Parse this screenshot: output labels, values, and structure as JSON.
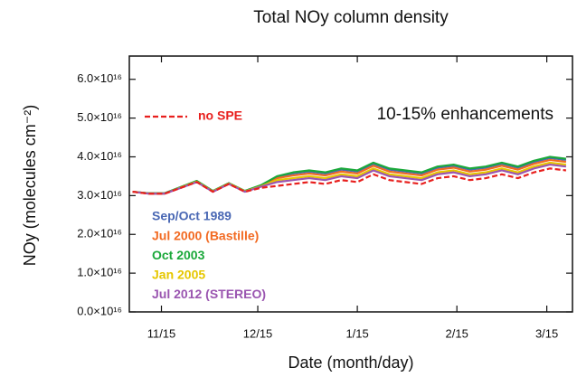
{
  "chart_data": {
    "type": "line",
    "title": "Total NOy column density",
    "xlabel": "Date (month/day)",
    "ylabel": "NOy (molecules cm⁻²)",
    "annotations": [
      "10-15% enhancements"
    ],
    "x": [
      5,
      10,
      15,
      20,
      25,
      30,
      35,
      40,
      45,
      50,
      55,
      60,
      65,
      70,
      75,
      80,
      85,
      90,
      95,
      100,
      105,
      110,
      115,
      120,
      125,
      130,
      135,
      140
    ],
    "xlim": [
      4,
      142
    ],
    "xticks": [
      {
        "value": 14,
        "label": "11/15"
      },
      {
        "value": 44,
        "label": "12/15"
      },
      {
        "value": 75,
        "label": "1/15"
      },
      {
        "value": 106,
        "label": "2/15"
      },
      {
        "value": 134,
        "label": "3/15"
      }
    ],
    "ylim": [
      0,
      6.6
    ],
    "yticks": [
      {
        "value": 0,
        "label": "0.0×10¹⁶"
      },
      {
        "value": 1,
        "label": "1.0×10¹⁶"
      },
      {
        "value": 2,
        "label": "2.0×10¹⁶"
      },
      {
        "value": 3,
        "label": "3.0×10¹⁶"
      },
      {
        "value": 4,
        "label": "4.0×10¹⁶"
      },
      {
        "value": 5,
        "label": "5.0×10¹⁶"
      },
      {
        "value": 6,
        "label": "6.0×10¹⁶"
      }
    ],
    "grid": false,
    "series": [
      {
        "name": "Sep/Oct 1989",
        "color": "#4a68b4",
        "values": [
          3.1,
          3.06,
          3.06,
          3.22,
          3.37,
          3.12,
          3.32,
          3.12,
          3.26,
          3.47,
          3.57,
          3.62,
          3.57,
          3.67,
          3.62,
          3.82,
          3.67,
          3.62,
          3.57,
          3.72,
          3.77,
          3.67,
          3.72,
          3.82,
          3.72,
          3.87,
          3.97,
          3.92
        ]
      },
      {
        "name": "Jul 2000 (Bastille)",
        "color": "#f26a22",
        "values": [
          3.1,
          3.06,
          3.06,
          3.21,
          3.36,
          3.11,
          3.31,
          3.11,
          3.25,
          3.45,
          3.52,
          3.57,
          3.52,
          3.62,
          3.57,
          3.77,
          3.62,
          3.57,
          3.52,
          3.67,
          3.72,
          3.62,
          3.67,
          3.77,
          3.67,
          3.82,
          3.92,
          3.87
        ]
      },
      {
        "name": "Oct 2003",
        "color": "#1aa83a",
        "values": [
          3.1,
          3.06,
          3.06,
          3.22,
          3.38,
          3.12,
          3.32,
          3.12,
          3.27,
          3.5,
          3.6,
          3.65,
          3.6,
          3.7,
          3.65,
          3.85,
          3.7,
          3.65,
          3.6,
          3.75,
          3.8,
          3.7,
          3.75,
          3.85,
          3.75,
          3.9,
          4.0,
          3.95
        ]
      },
      {
        "name": "Jan 2005",
        "color": "#e6c700",
        "values": [
          3.1,
          3.05,
          3.05,
          3.21,
          3.36,
          3.11,
          3.31,
          3.11,
          3.24,
          3.4,
          3.45,
          3.5,
          3.45,
          3.55,
          3.5,
          3.7,
          3.55,
          3.5,
          3.45,
          3.6,
          3.65,
          3.55,
          3.6,
          3.7,
          3.6,
          3.75,
          3.85,
          3.8
        ]
      },
      {
        "name": "Jul 2012 (STEREO)",
        "color": "#9a55b0",
        "values": [
          3.1,
          3.05,
          3.05,
          3.2,
          3.35,
          3.1,
          3.3,
          3.1,
          3.23,
          3.35,
          3.4,
          3.45,
          3.4,
          3.5,
          3.45,
          3.65,
          3.5,
          3.45,
          3.4,
          3.55,
          3.6,
          3.5,
          3.55,
          3.65,
          3.55,
          3.7,
          3.8,
          3.75
        ]
      },
      {
        "name": "no SPE",
        "color": "#e8201e",
        "dashed": true,
        "values": [
          3.1,
          3.05,
          3.05,
          3.2,
          3.35,
          3.1,
          3.3,
          3.1,
          3.2,
          3.25,
          3.3,
          3.35,
          3.3,
          3.4,
          3.35,
          3.55,
          3.4,
          3.35,
          3.3,
          3.45,
          3.5,
          3.4,
          3.45,
          3.55,
          3.45,
          3.6,
          3.7,
          3.65
        ]
      }
    ]
  }
}
